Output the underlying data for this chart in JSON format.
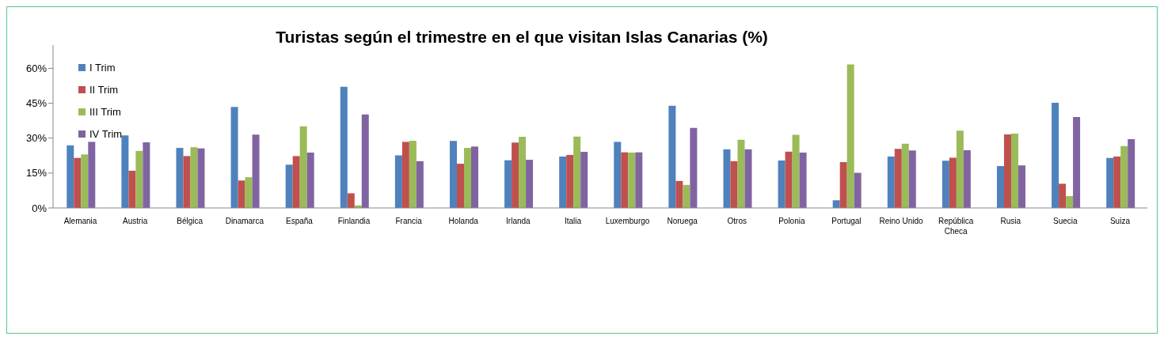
{
  "chart_data": {
    "type": "bar",
    "title": "Turistas según el trimestre en el que visitan Islas Canarias (%)",
    "categories": [
      "Alemania",
      "Austria",
      "Bélgica",
      "Dinamarca",
      "España",
      "Finlandia",
      "Francia",
      "Holanda",
      "Irlanda",
      "Italia",
      "Luxemburgo",
      "Noruega",
      "Otros",
      "Polonia",
      "Portugal",
      "Reino Unido",
      "República Checa",
      "Rusia",
      "Suecia",
      "Suiza"
    ],
    "series": [
      {
        "name": "I Trim",
        "color": "#4f81bd",
        "values": [
          26.9,
          31.2,
          25.8,
          43.4,
          18.6,
          52.1,
          22.6,
          28.8,
          20.5,
          22.1,
          28.4,
          43.9,
          25.2,
          20.4,
          3.3,
          22.1,
          20.3,
          18.0,
          45.2,
          21.5
        ]
      },
      {
        "name": "II Trim",
        "color": "#c0504d",
        "values": [
          21.5,
          16.0,
          22.3,
          11.8,
          22.3,
          6.3,
          28.4,
          19.0,
          28.1,
          22.8,
          23.9,
          11.6,
          20.1,
          24.2,
          19.7,
          25.4,
          21.6,
          31.6,
          10.4,
          22.1
        ]
      },
      {
        "name": "III Trim",
        "color": "#9bbb59",
        "values": [
          23.0,
          24.5,
          26.1,
          13.2,
          35.1,
          1.1,
          28.9,
          25.8,
          30.6,
          30.7,
          23.8,
          9.9,
          29.3,
          31.4,
          61.7,
          27.6,
          33.2,
          31.9,
          5.1,
          26.6
        ]
      },
      {
        "name": "IV Trim",
        "color": "#8064a2",
        "values": [
          28.4,
          28.2,
          25.6,
          31.5,
          23.8,
          40.2,
          20.1,
          26.4,
          20.7,
          24.1,
          23.9,
          34.4,
          25.2,
          23.8,
          15.1,
          24.7,
          24.8,
          18.3,
          39.1,
          29.6
        ]
      }
    ],
    "ylim": [
      0,
      70
    ],
    "yticks": [
      {
        "value": 0,
        "label": "0%"
      },
      {
        "value": 15,
        "label": "15%"
      },
      {
        "value": 30,
        "label": "30%"
      },
      {
        "value": 45,
        "label": "45%"
      },
      {
        "value": 60,
        "label": "60%"
      }
    ],
    "grid": false,
    "legend": "top left"
  }
}
